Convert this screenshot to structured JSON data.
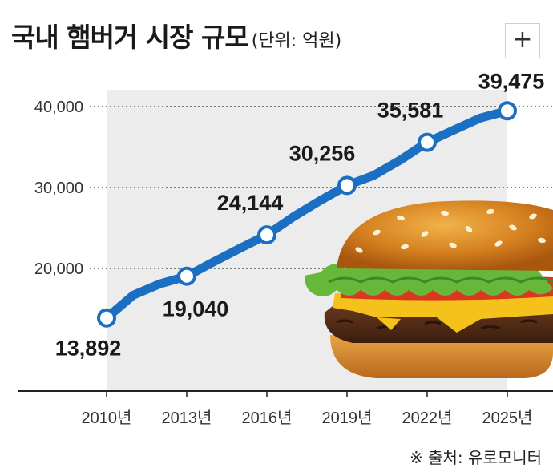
{
  "header": {
    "title": "국내 햄버거 시장 규모",
    "unit": "(단위: 억원)",
    "plus_label": "+"
  },
  "source": "※ 출처: 유로모니터",
  "colors": {
    "line": "#1b6fc2",
    "marker_fill": "#ffffff",
    "grid": "#555555",
    "area": "#ececec"
  },
  "chart_data": {
    "type": "line",
    "title": "국내 햄버거 시장 규모",
    "unit": "억원",
    "categories": [
      "2010년",
      "2013년",
      "2016년",
      "2019년",
      "2022년",
      "2025년"
    ],
    "x": [
      2010,
      2011,
      2012,
      2013,
      2014,
      2015,
      2016,
      2017,
      2018,
      2019,
      2020,
      2021,
      2022,
      2023,
      2024,
      2025
    ],
    "series": [
      {
        "values": [
          13892,
          16700,
          18100,
          19040,
          20800,
          22500,
          24144,
          26400,
          28400,
          30256,
          31500,
          33400,
          35581,
          37100,
          38600,
          39475
        ]
      }
    ],
    "labeled_points": [
      {
        "x": 2010,
        "label": "13,892"
      },
      {
        "x": 2013,
        "label": "19,040"
      },
      {
        "x": 2016,
        "label": "24,144"
      },
      {
        "x": 2019,
        "label": "30,256"
      },
      {
        "x": 2022,
        "label": "35,581"
      },
      {
        "x": 2025,
        "label": "39,475"
      }
    ],
    "y_ticks": [
      {
        "value": 20000,
        "label": "20,000"
      },
      {
        "value": 30000,
        "label": "30,000"
      },
      {
        "value": 40000,
        "label": "40,000"
      }
    ],
    "xlabel": "",
    "ylabel": "",
    "grid": "horizontal dotted",
    "illustration": "hamburger"
  }
}
